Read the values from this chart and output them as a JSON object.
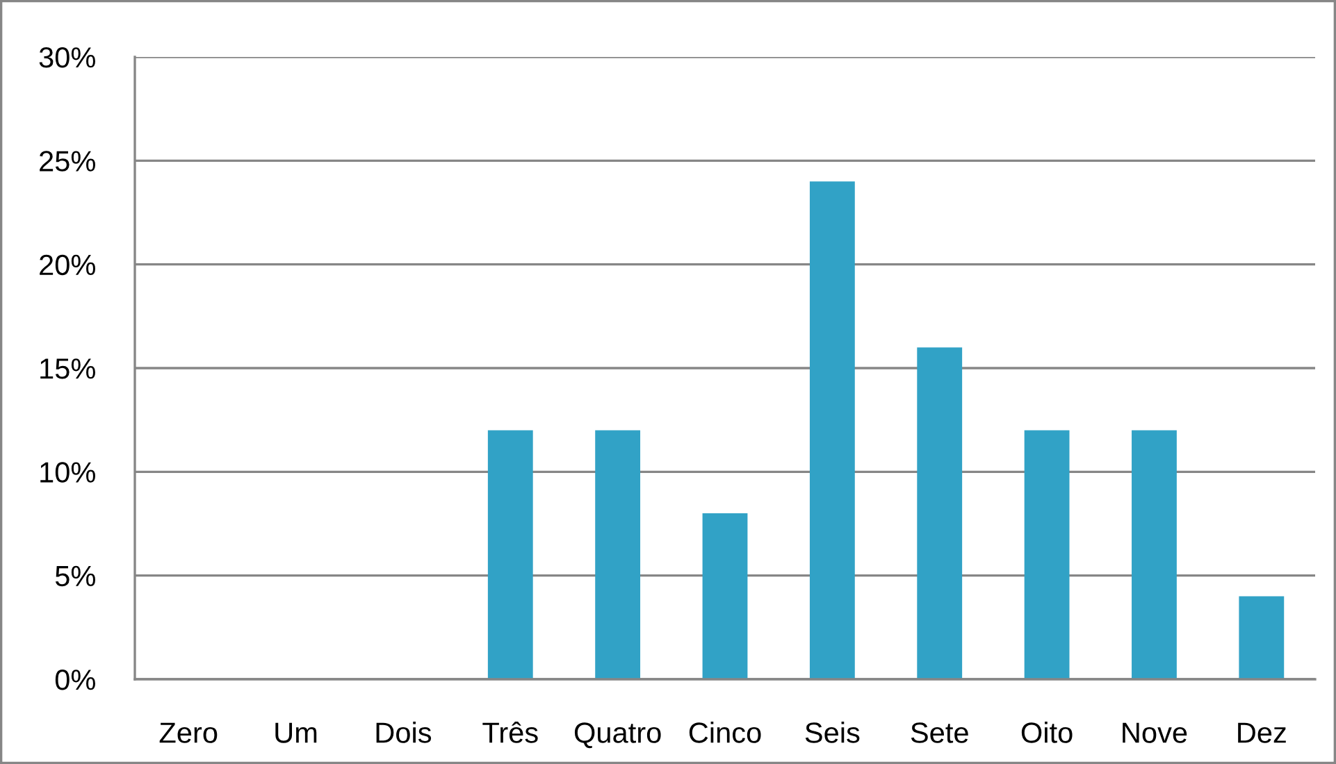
{
  "chart_data": {
    "type": "bar",
    "categories": [
      "Zero",
      "Um",
      "Dois",
      "Três",
      "Quatro",
      "Cinco",
      "Seis",
      "Sete",
      "Oito",
      "Nove",
      "Dez"
    ],
    "values": [
      0,
      0,
      0,
      12,
      12,
      8,
      24,
      16,
      12,
      12,
      4
    ],
    "color": "#31a2c6",
    "ylim": [
      0,
      30
    ],
    "yticks": [
      {
        "value": 0,
        "label": "0%"
      },
      {
        "value": 5,
        "label": "5%"
      },
      {
        "value": 10,
        "label": "10%"
      },
      {
        "value": 15,
        "label": "15%"
      },
      {
        "value": 20,
        "label": "20%"
      },
      {
        "value": 25,
        "label": "25%"
      },
      {
        "value": 30,
        "label": "30%"
      }
    ],
    "grid": "y"
  }
}
